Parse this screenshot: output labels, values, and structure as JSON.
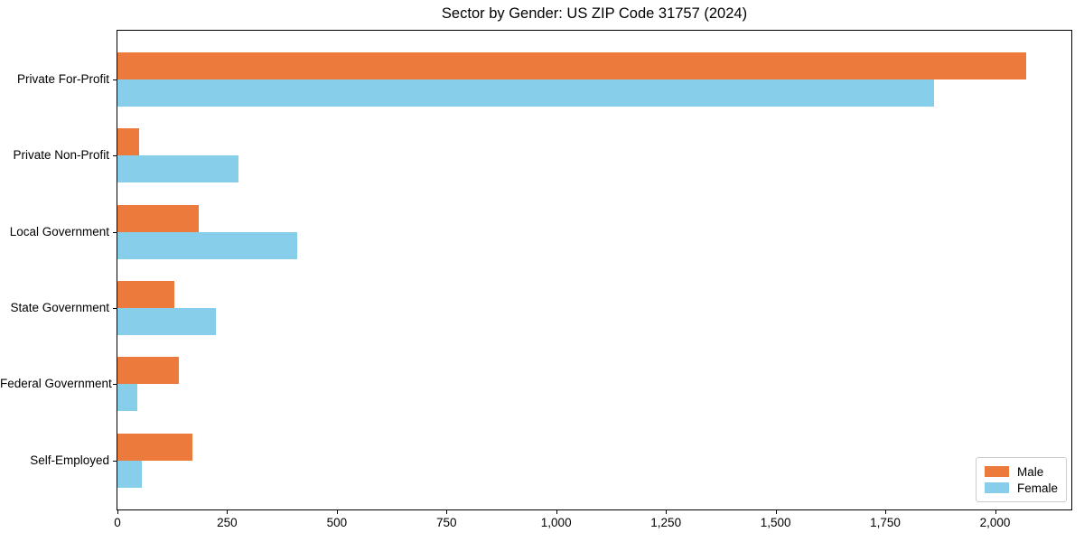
{
  "figure": {
    "background": "#ffffff"
  },
  "chart_data": {
    "type": "bar",
    "orientation": "horizontal",
    "title": "Sector by Gender: US ZIP Code 31757 (2024)",
    "categories": [
      "Private For-Profit",
      "Private Non-Profit",
      "Local Government",
      "State Government",
      "Federal Government",
      "Self-Employed"
    ],
    "series": [
      {
        "name": "Male",
        "color": "#EC7A3C",
        "values": [
          2070,
          50,
          185,
          130,
          140,
          170
        ]
      },
      {
        "name": "Female",
        "color": "#87CEEB",
        "values": [
          1860,
          275,
          410,
          225,
          45,
          55
        ]
      }
    ],
    "xlabel": "",
    "ylabel": "",
    "xlim": [
      0,
      2174
    ],
    "xticks": [
      0,
      250,
      500,
      750,
      1000,
      1250,
      1500,
      1750,
      2000
    ],
    "xtick_labels": [
      "0",
      "250",
      "500",
      "750",
      "1,000",
      "1,250",
      "1,500",
      "1,750",
      "2,000"
    ],
    "grid": false,
    "legend": {
      "position": "lower right"
    },
    "axis_color": "#000000"
  }
}
